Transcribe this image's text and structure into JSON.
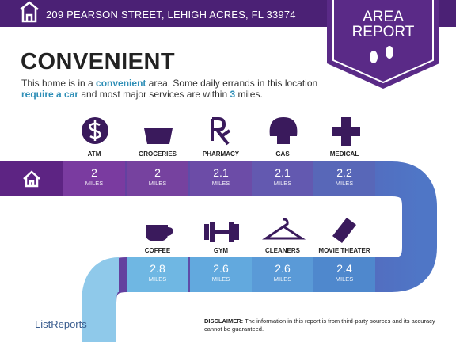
{
  "header": {
    "address": "209 PEARSON STREET, LEHIGH ACRES, FL 33974"
  },
  "badge": {
    "line1": "AREA",
    "line2": "REPORT"
  },
  "title": "CONVENIENT",
  "description": [
    "This home is in a ",
    "convenient",
    " area. Some daily errands in this location ",
    "require a car",
    " and most major services are within ",
    "3",
    " miles."
  ],
  "services": [
    {
      "label": "ATM",
      "distance": 2,
      "unit": "MILES"
    },
    {
      "label": "GROCERIES",
      "distance": 2,
      "unit": "MILES"
    },
    {
      "label": "PHARMACY",
      "distance": 2.1,
      "unit": "MILES"
    },
    {
      "label": "GAS",
      "distance": 2.1,
      "unit": "MILES"
    },
    {
      "label": "MEDICAL",
      "distance": 2.2,
      "unit": "MILES"
    },
    {
      "label": "COFFEE",
      "distance": 2.8,
      "unit": "MILES"
    },
    {
      "label": "GYM",
      "distance": 2.6,
      "unit": "MILES"
    },
    {
      "label": "CLEANERS",
      "distance": 2.6,
      "unit": "MILES"
    },
    {
      "label": "MOVIE THEATER",
      "distance": 2.4,
      "unit": "MILES"
    }
  ],
  "footer": {
    "logo": "ListReports",
    "disclaimer_label": "DISCLAIMER:",
    "disclaimer": " The information in this report is from third-party sources and its accuracy cannot be guaranteed."
  }
}
